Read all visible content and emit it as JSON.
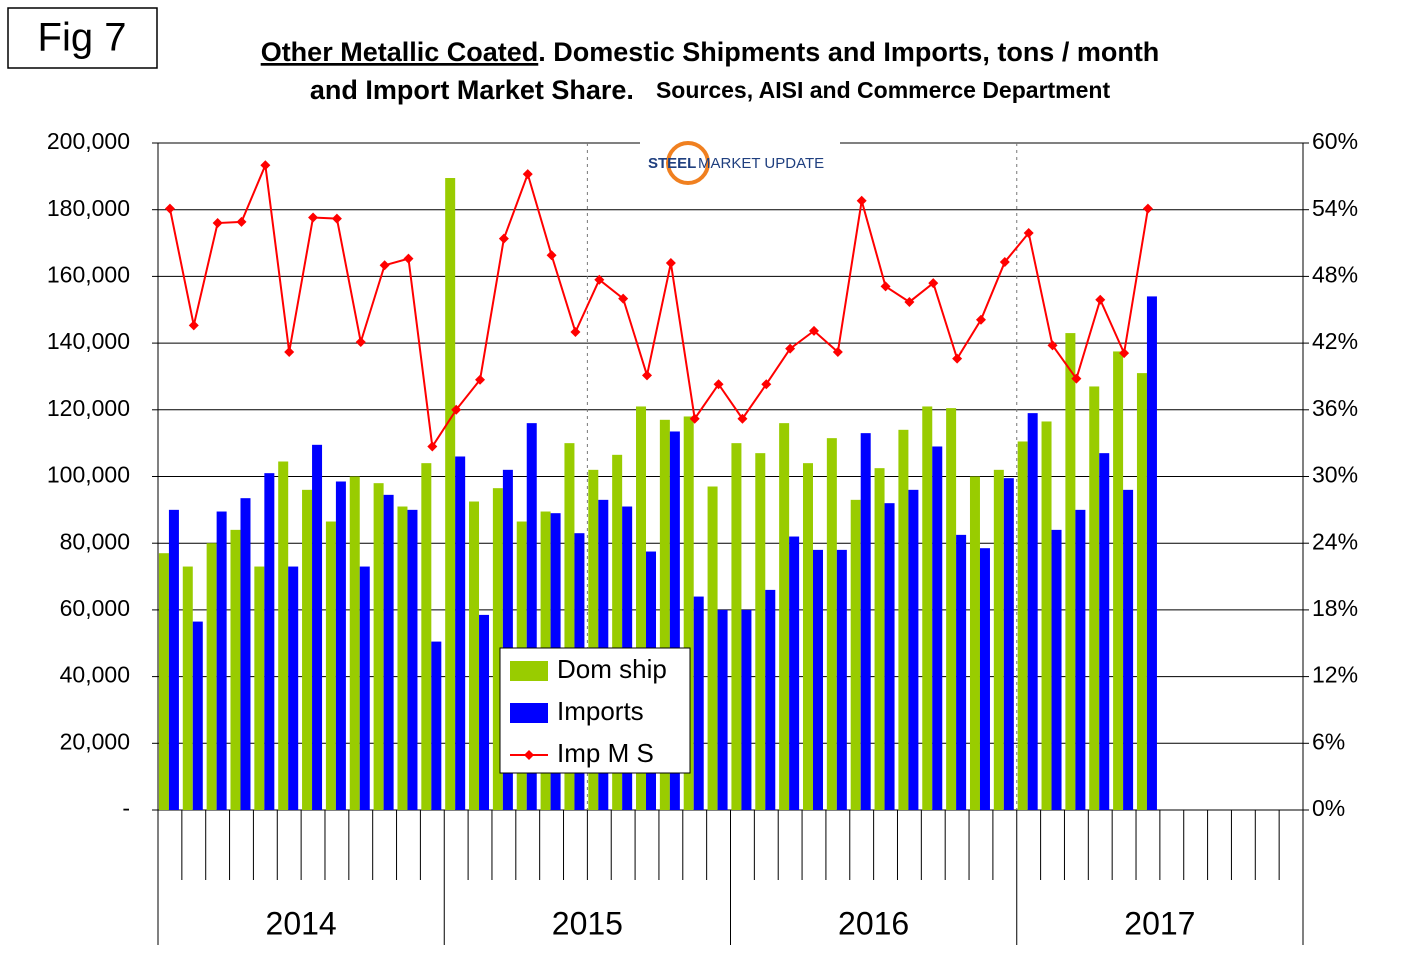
{
  "fig_label": "Fig 7",
  "logo": {
    "text_1": "STEEL",
    "text_2": "MARKET UPDATE"
  },
  "chart_data": {
    "type": "bar_line",
    "title_parts": [
      "Other Metallic Coated",
      ". Domestic Shipments and Imports, tons / month",
      "and Import Market Share.",
      "Sources, AISI and Commerce Department"
    ],
    "categories": [
      null,
      null,
      null,
      null,
      null,
      null,
      null,
      null,
      null,
      null,
      null,
      null,
      null,
      null,
      null,
      null,
      null,
      null,
      null,
      null,
      null,
      null,
      null,
      null,
      null,
      null,
      null,
      null,
      null,
      null,
      null,
      null,
      null,
      null,
      null,
      null,
      null,
      null,
      null,
      null,
      null,
      null,
      null,
      null,
      null,
      null,
      null,
      null
    ],
    "x_groups": [
      "2014",
      "2015",
      "2016",
      "2017"
    ],
    "ylim": [
      0,
      200000
    ],
    "yticks": [
      {
        "value": 0,
        "label": "-"
      },
      {
        "value": 20000,
        "label": "20,000"
      },
      {
        "value": 40000,
        "label": "40,000"
      },
      {
        "value": 60000,
        "label": "60,000"
      },
      {
        "value": 80000,
        "label": "80,000"
      },
      {
        "value": 100000,
        "label": "100,000"
      },
      {
        "value": 120000,
        "label": "120,000"
      },
      {
        "value": 140000,
        "label": "140,000"
      },
      {
        "value": 160000,
        "label": "160,000"
      },
      {
        "value": 180000,
        "label": "180,000"
      },
      {
        "value": 200000,
        "label": "200,000"
      }
    ],
    "y2lim": [
      0,
      60
    ],
    "y2ticks": [
      {
        "value": 0,
        "label": "0%"
      },
      {
        "value": 6,
        "label": "6%"
      },
      {
        "value": 12,
        "label": "12%"
      },
      {
        "value": 18,
        "label": "18%"
      },
      {
        "value": 24,
        "label": "24%"
      },
      {
        "value": 30,
        "label": "30%"
      },
      {
        "value": 36,
        "label": "36%"
      },
      {
        "value": 42,
        "label": "42%"
      },
      {
        "value": 48,
        "label": "48%"
      },
      {
        "value": 54,
        "label": "54%"
      },
      {
        "value": 60,
        "label": "60%"
      }
    ],
    "grid": true,
    "legend": "center",
    "series": [
      {
        "name": "Dom ship",
        "type": "bar",
        "color": "#99cc00",
        "values": [
          77000,
          73000,
          80000,
          84000,
          73000,
          104500,
          96000,
          86500,
          100000,
          98000,
          91000,
          104000,
          189500,
          92500,
          96500,
          86500,
          89500,
          110000,
          102000,
          106500,
          121000,
          117000,
          118000,
          97000,
          110000,
          107000,
          116000,
          104000,
          111500,
          93000,
          102500,
          114000,
          121000,
          120500,
          100000,
          102000,
          110500,
          116500,
          143000,
          127000,
          137500,
          131000,
          null,
          null,
          null,
          null,
          null,
          null
        ]
      },
      {
        "name": "Imports",
        "type": "bar",
        "color": "#0000ff",
        "values": [
          90000,
          56500,
          89500,
          93500,
          101000,
          73000,
          109500,
          98500,
          73000,
          94500,
          90000,
          50500,
          106000,
          58500,
          102000,
          116000,
          89000,
          83000,
          93000,
          91000,
          77500,
          113500,
          64000,
          60000,
          60000,
          66000,
          82000,
          78000,
          78000,
          113000,
          92000,
          96000,
          109000,
          82500,
          78500,
          99500,
          119000,
          84000,
          90000,
          107000,
          96000,
          154000,
          null,
          null,
          null,
          null,
          null,
          null
        ]
      },
      {
        "name": "Imp M S",
        "type": "line",
        "axis": "y2",
        "color": "#ff0000",
        "values": [
          54.1,
          43.6,
          52.8,
          52.9,
          58.0,
          41.2,
          53.3,
          53.2,
          42.1,
          49.0,
          49.6,
          32.7,
          36.0,
          38.7,
          51.4,
          57.2,
          49.9,
          43.0,
          47.7,
          46.0,
          39.1,
          49.2,
          35.2,
          38.3,
          35.2,
          38.3,
          41.5,
          43.1,
          41.2,
          54.8,
          47.1,
          45.7,
          47.4,
          40.6,
          44.1,
          49.3,
          51.9,
          41.8,
          38.8,
          45.9,
          41.1,
          54.1,
          null,
          null,
          null,
          null,
          null,
          null
        ]
      }
    ]
  }
}
